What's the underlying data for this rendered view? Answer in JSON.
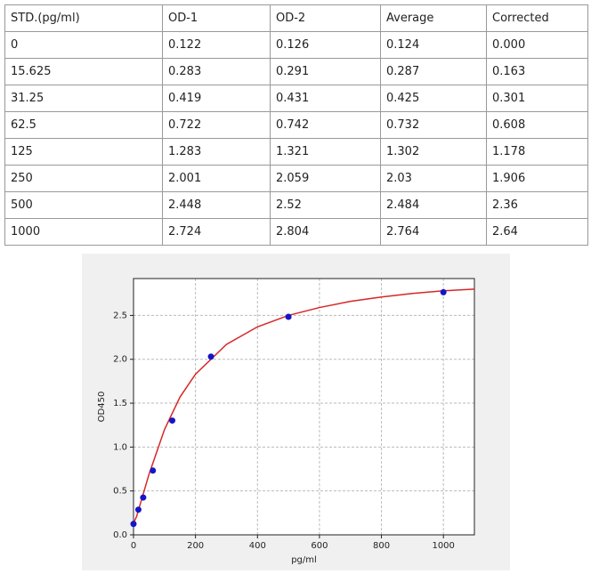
{
  "table": {
    "header": [
      "STD.(pg/ml)",
      "OD-1",
      "OD-2",
      "Average",
      "Corrected"
    ],
    "rows": [
      [
        "0",
        "0.122",
        "0.126",
        "0.124",
        "0.000"
      ],
      [
        "15.625",
        "0.283",
        "0.291",
        "0.287",
        "0.163"
      ],
      [
        "31.25",
        "0.419",
        "0.431",
        "0.425",
        "0.301"
      ],
      [
        "62.5",
        "0.722",
        "0.742",
        "0.732",
        "0.608"
      ],
      [
        "125",
        "1.283",
        "1.321",
        "1.302",
        "1.178"
      ],
      [
        "250",
        "2.001",
        "2.059",
        "2.03",
        "1.906"
      ],
      [
        "500",
        "2.448",
        "2.52",
        "2.484",
        "2.36"
      ],
      [
        "1000",
        "2.724",
        "2.804",
        "2.764",
        "2.64"
      ]
    ]
  },
  "chart_data": {
    "type": "scatter",
    "xlabel": "pg/ml",
    "ylabel": "OD450",
    "xlim": [
      0,
      1100
    ],
    "ylim": [
      0,
      2.92
    ],
    "xticks": [
      0,
      200,
      400,
      600,
      800,
      1000
    ],
    "yticks": [
      {
        "value": 0,
        "label": "0.0"
      },
      0.5,
      {
        "value": 1,
        "label": "1.0"
      },
      1.5,
      {
        "value": 2,
        "label": "2.0"
      },
      2.5
    ],
    "grid": true,
    "series": [
      {
        "type": "line",
        "color": "#d62728",
        "x": [
          0,
          10,
          25,
          50,
          100,
          150,
          200,
          300,
          400,
          500,
          600,
          700,
          800,
          900,
          1000,
          1100
        ],
        "values": [
          0.13,
          0.21,
          0.39,
          0.69,
          1.2,
          1.57,
          1.83,
          2.17,
          2.37,
          2.5,
          2.59,
          2.66,
          2.71,
          2.75,
          2.78,
          2.8
        ]
      },
      {
        "type": "scatter",
        "color": "#1515c8",
        "x": [
          0,
          15.625,
          31.25,
          62.5,
          125,
          250,
          500,
          1000
        ],
        "values": [
          0.124,
          0.287,
          0.425,
          0.732,
          1.302,
          2.03,
          2.484,
          2.764
        ]
      }
    ]
  }
}
